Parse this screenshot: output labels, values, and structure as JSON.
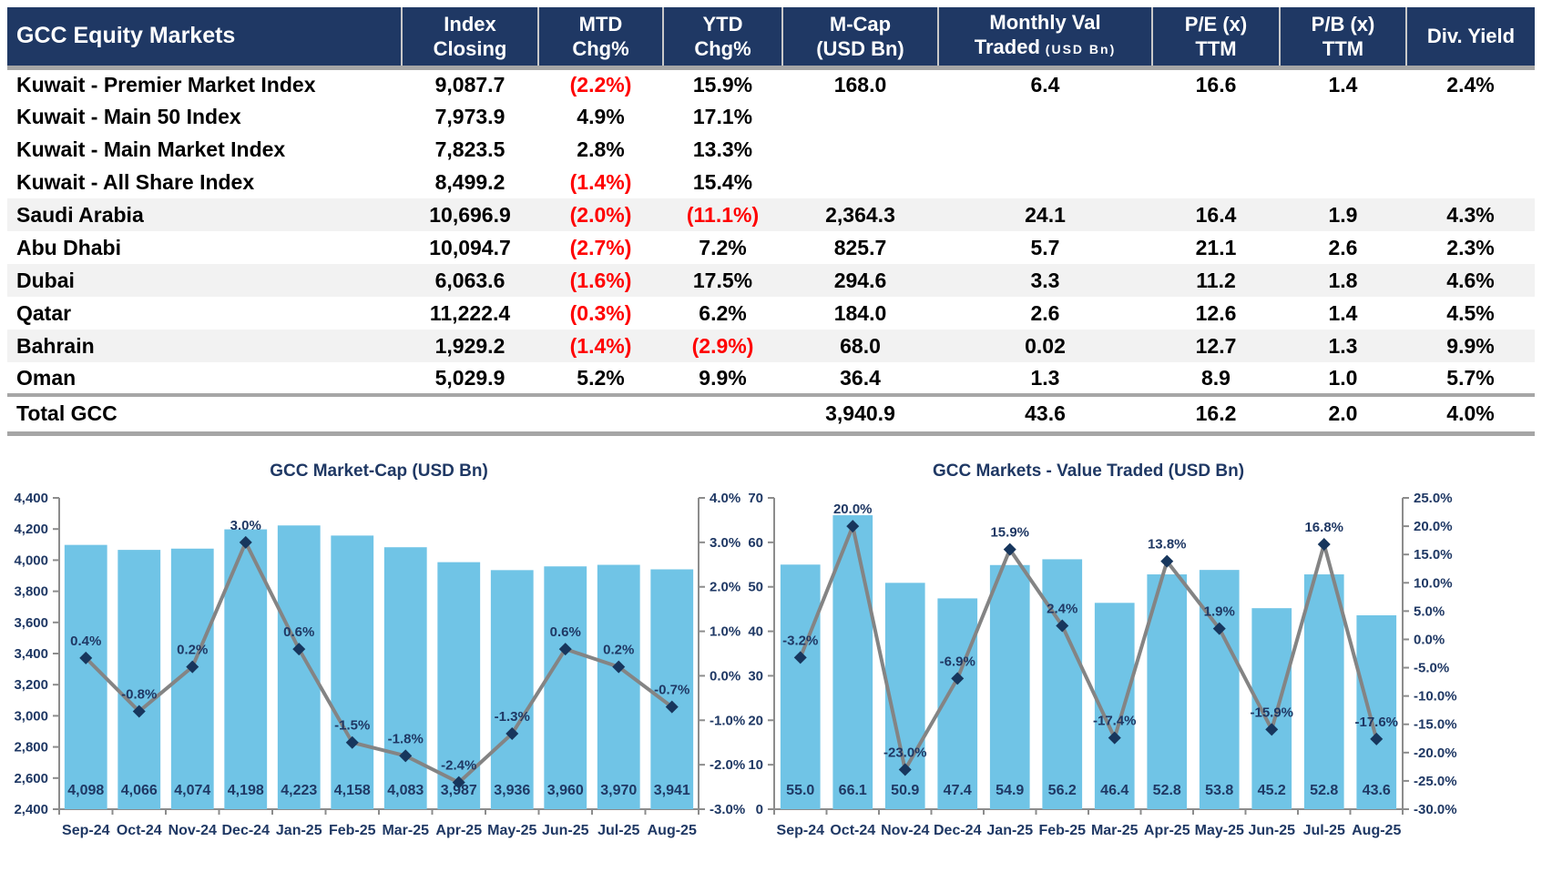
{
  "colors": {
    "header_navy": "#1F3864",
    "label_navy": "#1F3864",
    "bar_blue": "#70C4E6",
    "line_gray": "#848484",
    "marker_navy": "#17365D",
    "negative_red": "#FF0000",
    "divider_gray": "#A6A6A6",
    "row_band": "#F2F2F2"
  },
  "table": {
    "title": "GCC Equity Markets",
    "columns": [
      {
        "line1": "Index",
        "line2": "Closing"
      },
      {
        "line1": "MTD",
        "line2": "Chg%"
      },
      {
        "line1": "YTD",
        "line2": "Chg%"
      },
      {
        "line1": "M-Cap",
        "line2": "(USD Bn)"
      },
      {
        "line1": "Monthly Val",
        "line2": "Traded",
        "line2_small": "(USD Bn)"
      },
      {
        "line1": "P/E (x)",
        "line2": "TTM"
      },
      {
        "line1": "P/B (x)",
        "line2": "TTM"
      },
      {
        "line1": "Div. Yield"
      }
    ],
    "rows": [
      {
        "label": "Kuwait - Premier Market Index",
        "cells": [
          "9,087.7",
          "(2.2%)",
          "15.9%",
          "168.0",
          "6.4",
          "16.6",
          "1.4",
          "2.4%"
        ],
        "banded": false
      },
      {
        "label": "Kuwait - Main 50 Index",
        "cells": [
          "7,973.9",
          "4.9%",
          "17.1%",
          "",
          "",
          "",
          "",
          ""
        ],
        "banded": false
      },
      {
        "label": "Kuwait - Main Market Index",
        "cells": [
          "7,823.5",
          "2.8%",
          "13.3%",
          "",
          "",
          "",
          "",
          ""
        ],
        "banded": false
      },
      {
        "label": "Kuwait - All Share Index",
        "cells": [
          "8,499.2",
          "(1.4%)",
          "15.4%",
          "",
          "",
          "",
          "",
          ""
        ],
        "banded": false
      },
      {
        "label": "Saudi Arabia",
        "cells": [
          "10,696.9",
          "(2.0%)",
          "(11.1%)",
          "2,364.3",
          "24.1",
          "16.4",
          "1.9",
          "4.3%"
        ],
        "banded": true
      },
      {
        "label": "Abu Dhabi",
        "cells": [
          "10,094.7",
          "(2.7%)",
          "7.2%",
          "825.7",
          "5.7",
          "21.1",
          "2.6",
          "2.3%"
        ],
        "banded": false
      },
      {
        "label": "Dubai",
        "cells": [
          "6,063.6",
          "(1.6%)",
          "17.5%",
          "294.6",
          "3.3",
          "11.2",
          "1.8",
          "4.6%"
        ],
        "banded": true
      },
      {
        "label": "Qatar",
        "cells": [
          "11,222.4",
          "(0.3%)",
          "6.2%",
          "184.0",
          "2.6",
          "12.6",
          "1.4",
          "4.5%"
        ],
        "banded": false
      },
      {
        "label": "Bahrain",
        "cells": [
          "1,929.2",
          "(1.4%)",
          "(2.9%)",
          "68.0",
          "0.02",
          "12.7",
          "1.3",
          "9.9%"
        ],
        "banded": true
      },
      {
        "label": "Oman",
        "cells": [
          "5,029.9",
          "5.2%",
          "9.9%",
          "36.4",
          "1.3",
          "8.9",
          "1.0",
          "5.7%"
        ],
        "banded": false
      }
    ],
    "total_row": {
      "label": "Total GCC",
      "cells": [
        "",
        "",
        "",
        "3,940.9",
        "43.6",
        "16.2",
        "2.0",
        "4.0%"
      ]
    }
  },
  "chart_data": [
    {
      "type": "bar+line",
      "title": "GCC  Market-Cap (USD Bn)",
      "categories": [
        "Sep-24",
        "Oct-24",
        "Nov-24",
        "Dec-24",
        "Jan-25",
        "Feb-25",
        "Mar-25",
        "Apr-25",
        "May-25",
        "Jun-25",
        "Jul-25",
        "Aug-25"
      ],
      "bar_series": {
        "name": "Market Cap (USD Bn)",
        "values": [
          4098,
          4066,
          4074,
          4198,
          4223,
          4158,
          4083,
          3987,
          3936,
          3960,
          3970,
          3941
        ],
        "labels": [
          "4,098",
          "4,066",
          "4,074",
          "4,198",
          "4,223",
          "4,158",
          "4,083",
          "3,987",
          "3,936",
          "3,960",
          "3,970",
          "3,941"
        ]
      },
      "line_series": {
        "name": "MoM Chg%",
        "values": [
          0.4,
          -0.8,
          0.2,
          3.0,
          0.6,
          -1.5,
          -1.8,
          -2.4,
          -1.3,
          0.6,
          0.2,
          -0.7
        ],
        "labels": [
          "0.4%",
          "-0.8%",
          "0.2%",
          "3.0%",
          "0.6%",
          "-1.5%",
          "-1.8%",
          "-2.4%",
          "-1.3%",
          "0.6%",
          "0.2%",
          "-0.7%"
        ]
      },
      "left_axis": {
        "min": 2400,
        "max": 4400,
        "step": 200,
        "ticks": [
          "4,400",
          "4,200",
          "4,000",
          "3,800",
          "3,600",
          "3,400",
          "3,200",
          "3,000",
          "2,800",
          "2,600",
          "2,400"
        ]
      },
      "right_axis": {
        "min": -3,
        "max": 4,
        "step": 1,
        "ticks": [
          "4.0%",
          "3.0%",
          "2.0%",
          "1.0%",
          "0.0%",
          "-1.0%",
          "-2.0%",
          "-3.0%"
        ]
      },
      "grid": false,
      "legend": false
    },
    {
      "type": "bar+line",
      "title": "GCC  Markets - Value Traded (USD Bn)",
      "categories": [
        "Sep-24",
        "Oct-24",
        "Nov-24",
        "Dec-24",
        "Jan-25",
        "Feb-25",
        "Mar-25",
        "Apr-25",
        "May-25",
        "Jun-25",
        "Jul-25",
        "Aug-25"
      ],
      "bar_series": {
        "name": "Value Traded (USD Bn)",
        "values": [
          55.0,
          66.1,
          50.9,
          47.4,
          54.9,
          56.2,
          46.4,
          52.8,
          53.8,
          45.2,
          52.8,
          43.6
        ],
        "labels": [
          "55.0",
          "66.1",
          "50.9",
          "47.4",
          "54.9",
          "56.2",
          "46.4",
          "52.8",
          "53.8",
          "45.2",
          "52.8",
          "43.6"
        ]
      },
      "line_series": {
        "name": "MoM Chg%",
        "values": [
          -3.2,
          20.0,
          -23.0,
          -6.9,
          15.9,
          2.4,
          -17.4,
          13.8,
          1.9,
          -15.9,
          16.8,
          -17.6
        ],
        "labels": [
          "-3.2%",
          "20.0%",
          "-23.0%",
          "-6.9%",
          "15.9%",
          "2.4%",
          "-17.4%",
          "13.8%",
          "1.9%",
          "-15.9%",
          "16.8%",
          "-17.6%"
        ]
      },
      "left_axis": {
        "min": 0,
        "max": 70,
        "step": 10,
        "ticks": [
          "70",
          "60",
          "50",
          "40",
          "30",
          "20",
          "10",
          "0"
        ]
      },
      "right_axis": {
        "min": -30,
        "max": 25,
        "step": 5,
        "ticks": [
          "25.0%",
          "20.0%",
          "15.0%",
          "10.0%",
          "5.0%",
          "0.0%",
          "-5.0%",
          "-10.0%",
          "-15.0%",
          "-20.0%",
          "-25.0%",
          "-30.0%"
        ]
      },
      "grid": false,
      "legend": false
    }
  ]
}
